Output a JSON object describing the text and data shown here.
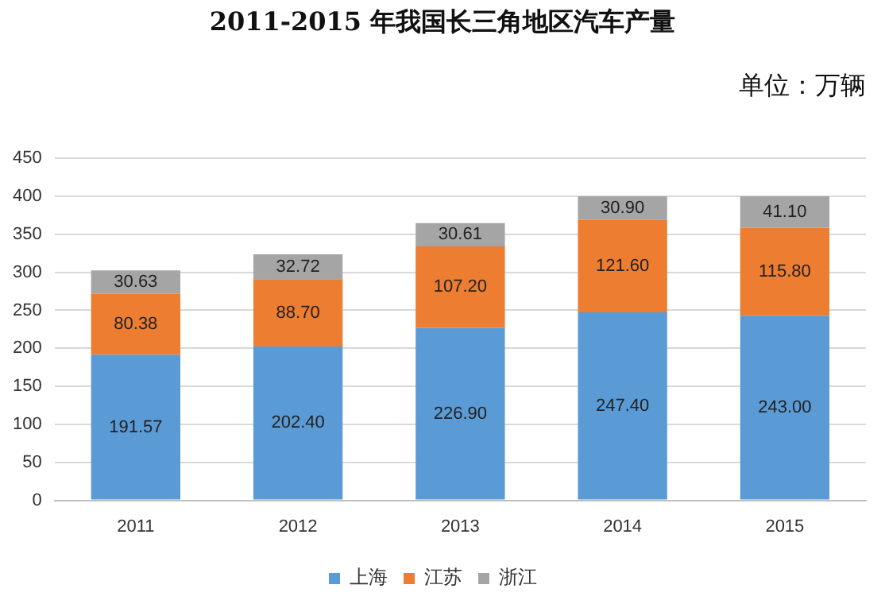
{
  "chart_data": {
    "type": "bar",
    "title": "2011-2015 年我国长三角地区汽车产量",
    "annotations": [
      "单位：万辆"
    ],
    "categories": [
      "2011",
      "2012",
      "2013",
      "2014",
      "2015"
    ],
    "stacked": true,
    "series": [
      {
        "name": "上海",
        "color": "#5b9bd5",
        "values": [
          191.57,
          202.4,
          226.9,
          247.4,
          243.0
        ],
        "value_labels": [
          "191.57",
          "202.40",
          "226.90",
          "247.40",
          "243.00"
        ]
      },
      {
        "name": "江苏",
        "color": "#ed7d31",
        "values": [
          80.38,
          88.7,
          107.2,
          121.6,
          115.8
        ],
        "value_labels": [
          "80.38",
          "88.70",
          "107.20",
          "121.60",
          "115.80"
        ]
      },
      {
        "name": "浙江",
        "color": "#a5a5a5",
        "values": [
          30.63,
          32.72,
          30.61,
          30.9,
          41.1
        ],
        "value_labels": [
          "30.63",
          "32.72",
          "30.61",
          "30.90",
          "41.10"
        ]
      }
    ],
    "ylim": [
      0,
      450
    ],
    "yticks": [
      0,
      50,
      100,
      150,
      200,
      250,
      300,
      350,
      400,
      450
    ],
    "grid": "y",
    "legend": "bottom"
  }
}
